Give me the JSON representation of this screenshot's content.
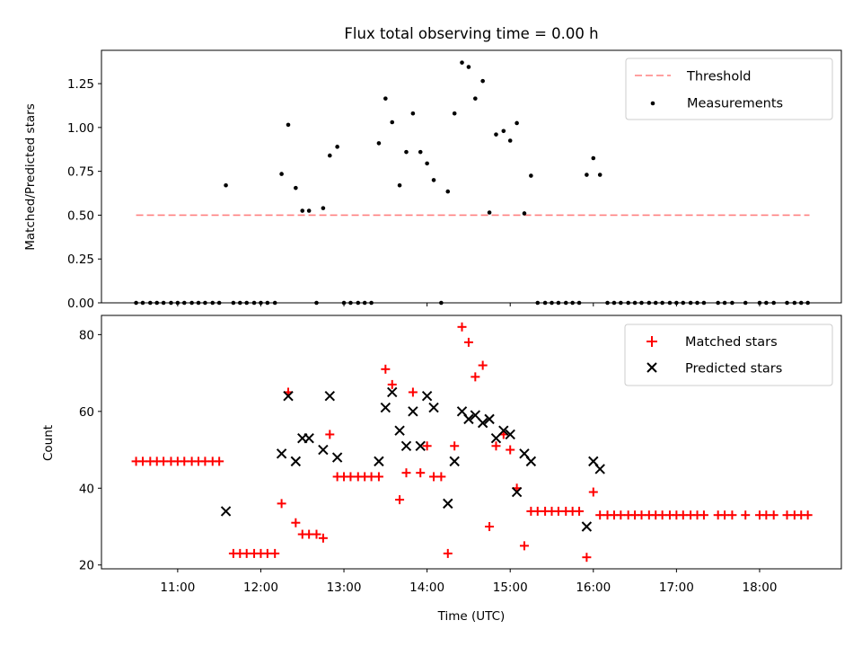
{
  "title": "Flux total observing time = 0.00 h",
  "colors": {
    "threshold": "#ff8080",
    "measurements": "#000000",
    "matched": "#ff0000",
    "predicted": "#000000"
  },
  "x_ticks": [
    "11:00",
    "12:00",
    "13:00",
    "14:00",
    "15:00",
    "16:00",
    "17:00",
    "18:00"
  ],
  "chart_data": [
    {
      "type": "scatter",
      "ylabel": "Matched/Predicted stars",
      "xlim_hours": [
        10.0833,
        18.9833
      ],
      "ylim": [
        0,
        1.44
      ],
      "y_ticks": [
        0.0,
        0.25,
        0.5,
        0.75,
        1.0,
        1.25
      ],
      "y_tick_labels": [
        "0.00",
        "0.25",
        "0.50",
        "0.75",
        "1.00",
        "1.25"
      ],
      "legend": {
        "placement": "top-right",
        "entries": [
          "Threshold",
          "Measurements"
        ]
      },
      "threshold": {
        "name": "Threshold",
        "value": 0.5,
        "x_range_hours": [
          10.5,
          18.6
        ]
      },
      "series": [
        {
          "name": "Measurements",
          "points": [
            [
              10.5,
              0
            ],
            [
              10.58,
              0
            ],
            [
              10.67,
              0
            ],
            [
              10.75,
              0
            ],
            [
              10.83,
              0
            ],
            [
              10.92,
              0
            ],
            [
              11.0,
              0
            ],
            [
              11.08,
              0
            ],
            [
              11.17,
              0
            ],
            [
              11.25,
              0
            ],
            [
              11.33,
              0
            ],
            [
              11.42,
              0
            ],
            [
              11.5,
              0
            ],
            [
              11.58,
              0.67
            ],
            [
              11.67,
              0
            ],
            [
              11.75,
              0
            ],
            [
              11.83,
              0
            ],
            [
              11.92,
              0
            ],
            [
              12.0,
              0
            ],
            [
              12.08,
              0
            ],
            [
              12.17,
              0
            ],
            [
              12.25,
              0.735
            ],
            [
              12.33,
              1.015
            ],
            [
              12.42,
              0.655
            ],
            [
              12.5,
              0.525
            ],
            [
              12.58,
              0.525
            ],
            [
              12.67,
              0
            ],
            [
              12.75,
              0.54
            ],
            [
              12.83,
              0.84
            ],
            [
              12.92,
              0.89
            ],
            [
              13.0,
              0
            ],
            [
              13.08,
              0
            ],
            [
              13.17,
              0
            ],
            [
              13.25,
              0
            ],
            [
              13.33,
              0
            ],
            [
              13.42,
              0.91
            ],
            [
              13.5,
              1.165
            ],
            [
              13.58,
              1.03
            ],
            [
              13.67,
              0.67
            ],
            [
              13.75,
              0.86
            ],
            [
              13.83,
              1.08
            ],
            [
              13.92,
              0.86
            ],
            [
              14.0,
              0.795
            ],
            [
              14.08,
              0.7
            ],
            [
              14.17,
              0
            ],
            [
              14.25,
              0.635
            ],
            [
              14.33,
              1.08
            ],
            [
              14.42,
              1.37
            ],
            [
              14.5,
              1.345
            ],
            [
              14.58,
              1.165
            ],
            [
              14.67,
              1.265
            ],
            [
              14.75,
              0.515
            ],
            [
              14.83,
              0.96
            ],
            [
              14.92,
              0.98
            ],
            [
              15.0,
              0.925
            ],
            [
              15.08,
              1.025
            ],
            [
              15.17,
              0.51
            ],
            [
              15.25,
              0.725
            ],
            [
              15.33,
              0
            ],
            [
              15.42,
              0
            ],
            [
              15.5,
              0
            ],
            [
              15.58,
              0
            ],
            [
              15.67,
              0
            ],
            [
              15.75,
              0
            ],
            [
              15.83,
              0
            ],
            [
              15.92,
              0.73
            ],
            [
              16.0,
              0.825
            ],
            [
              16.08,
              0.73
            ],
            [
              16.17,
              0
            ],
            [
              16.25,
              0
            ],
            [
              16.33,
              0
            ],
            [
              16.42,
              0
            ],
            [
              16.5,
              0
            ],
            [
              16.58,
              0
            ],
            [
              16.67,
              0
            ],
            [
              16.75,
              0
            ],
            [
              16.83,
              0
            ],
            [
              16.92,
              0
            ],
            [
              17.0,
              0
            ],
            [
              17.08,
              0
            ],
            [
              17.17,
              0
            ],
            [
              17.25,
              0
            ],
            [
              17.33,
              0
            ],
            [
              17.5,
              0
            ],
            [
              17.58,
              0
            ],
            [
              17.67,
              0
            ],
            [
              17.83,
              0
            ],
            [
              18.0,
              0
            ],
            [
              18.08,
              0
            ],
            [
              18.17,
              0
            ],
            [
              18.33,
              0
            ],
            [
              18.42,
              0
            ],
            [
              18.5,
              0
            ],
            [
              18.58,
              0
            ]
          ]
        }
      ]
    },
    {
      "type": "scatter",
      "xlabel": "Time (UTC)",
      "ylabel": "Count",
      "xlim_hours": [
        10.0833,
        18.9833
      ],
      "ylim": [
        19,
        85
      ],
      "y_ticks": [
        20,
        40,
        60,
        80
      ],
      "y_tick_labels": [
        "20",
        "40",
        "60",
        "80"
      ],
      "legend": {
        "placement": "top-right",
        "entries": [
          "Matched stars",
          "Predicted stars"
        ]
      },
      "series": [
        {
          "name": "Matched stars",
          "marker": "plus",
          "points": [
            [
              10.5,
              47
            ],
            [
              10.58,
              47
            ],
            [
              10.67,
              47
            ],
            [
              10.75,
              47
            ],
            [
              10.83,
              47
            ],
            [
              10.92,
              47
            ],
            [
              11.0,
              47
            ],
            [
              11.08,
              47
            ],
            [
              11.17,
              47
            ],
            [
              11.25,
              47
            ],
            [
              11.33,
              47
            ],
            [
              11.42,
              47
            ],
            [
              11.5,
              47
            ],
            [
              11.67,
              23
            ],
            [
              11.75,
              23
            ],
            [
              11.83,
              23
            ],
            [
              11.92,
              23
            ],
            [
              12.0,
              23
            ],
            [
              12.08,
              23
            ],
            [
              12.17,
              23
            ],
            [
              12.25,
              36
            ],
            [
              12.33,
              65
            ],
            [
              12.42,
              31
            ],
            [
              12.5,
              28
            ],
            [
              12.58,
              28
            ],
            [
              12.67,
              28
            ],
            [
              12.75,
              27
            ],
            [
              12.83,
              54
            ],
            [
              12.92,
              43
            ],
            [
              13.0,
              43
            ],
            [
              13.08,
              43
            ],
            [
              13.17,
              43
            ],
            [
              13.25,
              43
            ],
            [
              13.33,
              43
            ],
            [
              13.42,
              43
            ],
            [
              13.5,
              71
            ],
            [
              13.58,
              67
            ],
            [
              13.67,
              37
            ],
            [
              13.75,
              44
            ],
            [
              13.83,
              65
            ],
            [
              13.92,
              44
            ],
            [
              14.0,
              51
            ],
            [
              14.08,
              43
            ],
            [
              14.17,
              43
            ],
            [
              14.25,
              23
            ],
            [
              14.33,
              51
            ],
            [
              14.42,
              82
            ],
            [
              14.5,
              78
            ],
            [
              14.58,
              69
            ],
            [
              14.67,
              72
            ],
            [
              14.75,
              30
            ],
            [
              14.83,
              51
            ],
            [
              14.92,
              54
            ],
            [
              15.0,
              50
            ],
            [
              15.08,
              40
            ],
            [
              15.17,
              25
            ],
            [
              15.25,
              34
            ],
            [
              15.33,
              34
            ],
            [
              15.42,
              34
            ],
            [
              15.5,
              34
            ],
            [
              15.58,
              34
            ],
            [
              15.67,
              34
            ],
            [
              15.75,
              34
            ],
            [
              15.83,
              34
            ],
            [
              15.92,
              22
            ],
            [
              16.0,
              39
            ],
            [
              16.08,
              33
            ],
            [
              16.17,
              33
            ],
            [
              16.25,
              33
            ],
            [
              16.33,
              33
            ],
            [
              16.42,
              33
            ],
            [
              16.5,
              33
            ],
            [
              16.58,
              33
            ],
            [
              16.67,
              33
            ],
            [
              16.75,
              33
            ],
            [
              16.83,
              33
            ],
            [
              16.92,
              33
            ],
            [
              17.0,
              33
            ],
            [
              17.08,
              33
            ],
            [
              17.17,
              33
            ],
            [
              17.25,
              33
            ],
            [
              17.33,
              33
            ],
            [
              17.5,
              33
            ],
            [
              17.58,
              33
            ],
            [
              17.67,
              33
            ],
            [
              17.83,
              33
            ],
            [
              18.0,
              33
            ],
            [
              18.08,
              33
            ],
            [
              18.17,
              33
            ],
            [
              18.33,
              33
            ],
            [
              18.42,
              33
            ],
            [
              18.5,
              33
            ],
            [
              18.58,
              33
            ]
          ]
        },
        {
          "name": "Predicted stars",
          "marker": "x",
          "points": [
            [
              11.58,
              34
            ],
            [
              12.25,
              49
            ],
            [
              12.33,
              64
            ],
            [
              12.42,
              47
            ],
            [
              12.5,
              53
            ],
            [
              12.58,
              53
            ],
            [
              12.75,
              50
            ],
            [
              12.83,
              64
            ],
            [
              12.92,
              48
            ],
            [
              13.42,
              47
            ],
            [
              13.5,
              61
            ],
            [
              13.58,
              65
            ],
            [
              13.67,
              55
            ],
            [
              13.75,
              51
            ],
            [
              13.83,
              60
            ],
            [
              13.92,
              51
            ],
            [
              14.0,
              64
            ],
            [
              14.08,
              61
            ],
            [
              14.25,
              36
            ],
            [
              14.33,
              47
            ],
            [
              14.42,
              60
            ],
            [
              14.5,
              58
            ],
            [
              14.58,
              59
            ],
            [
              14.67,
              57
            ],
            [
              14.75,
              58
            ],
            [
              14.83,
              53
            ],
            [
              14.92,
              55
            ],
            [
              15.0,
              54
            ],
            [
              15.08,
              39
            ],
            [
              15.17,
              49
            ],
            [
              15.25,
              47
            ],
            [
              15.92,
              30
            ],
            [
              16.0,
              47
            ],
            [
              16.08,
              45
            ]
          ]
        }
      ]
    }
  ]
}
